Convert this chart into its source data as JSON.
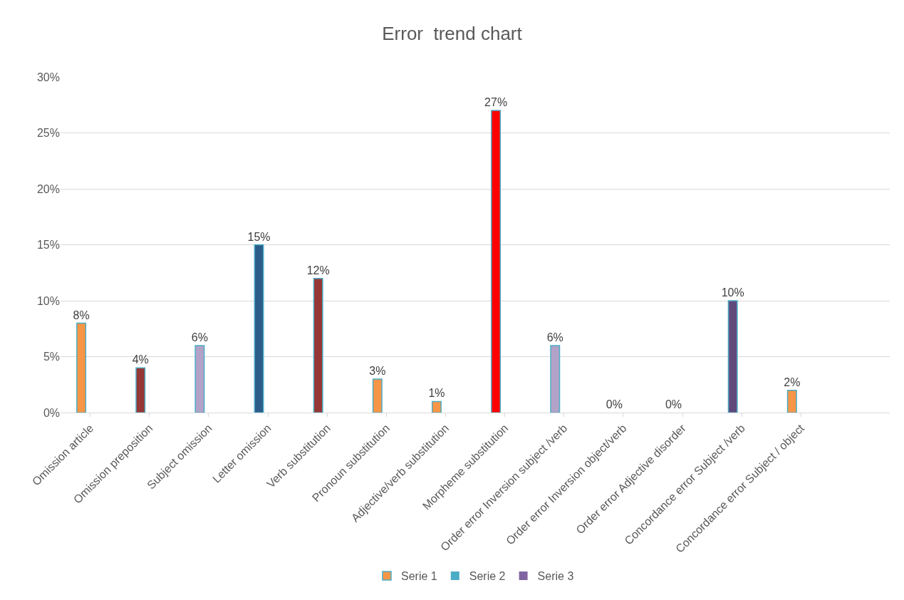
{
  "chart_data": {
    "type": "bar",
    "title": "Error  trend chart",
    "categories": [
      "Omission article",
      "Omission preposition",
      "Subject omission",
      "Letter omission",
      "Verb substitution",
      "Pronoun substitution",
      "Adjective/verb substitution",
      "Morpheme substitution",
      "Order error Inversion subject /verb",
      "Order error Inversion object/verb",
      "Order error Adjective disorder",
      "Concordance error Subject /verb",
      "Concordance error Subject / object",
      null
    ],
    "series": [
      {
        "name": "Serie 1",
        "color": "#f79646",
        "values": [
          8,
          4,
          6,
          15,
          12,
          3,
          1,
          27,
          6,
          0,
          0,
          10,
          2,
          null
        ],
        "colors": [
          null,
          "#953735",
          "#b3a2c7",
          "#2c5d8a",
          "#953735",
          null,
          null,
          "#ff0000",
          "#b3a2c7",
          null,
          null,
          "#604a7b",
          null,
          null
        ],
        "value_labels": [
          "8%",
          "4%",
          "6%",
          "15%",
          "12%",
          "3%",
          "1%",
          "27%",
          "6%",
          "0%",
          "0%",
          "10%",
          "2%",
          null
        ]
      },
      {
        "name": "Serie 2",
        "color": "#4bacc6",
        "values": [
          null,
          null,
          null,
          null,
          null,
          null,
          null,
          null,
          null,
          null,
          null,
          null,
          null,
          null
        ]
      },
      {
        "name": "Serie 3",
        "color": "#8064a2",
        "values": [
          null,
          null,
          null,
          null,
          null,
          null,
          null,
          null,
          null,
          null,
          null,
          null,
          null,
          null
        ]
      }
    ],
    "ylim": [
      0,
      30
    ],
    "yticks": [
      {
        "value": 0,
        "label": "0%"
      },
      {
        "value": 5,
        "label": "5%"
      },
      {
        "value": 10,
        "label": "10%"
      },
      {
        "value": 15,
        "label": "15%"
      },
      {
        "value": 20,
        "label": "20%"
      },
      {
        "value": 25,
        "label": "25%"
      },
      {
        "value": 30,
        "label": "30%"
      }
    ],
    "grid": "y",
    "legend": "bottom"
  }
}
